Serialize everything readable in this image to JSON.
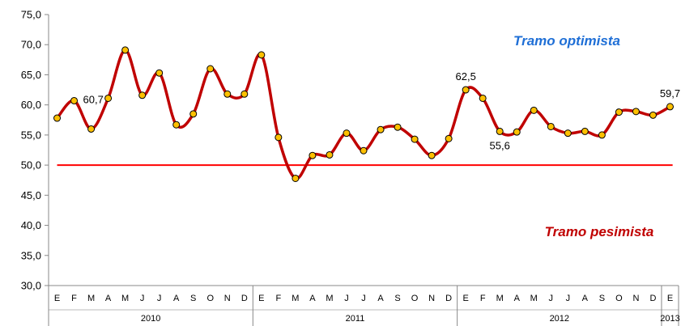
{
  "chart_data": {
    "type": "line",
    "ylim": [
      30,
      75
    ],
    "yticks": [
      "30,0",
      "35,0",
      "40,0",
      "45,0",
      "50,0",
      "55,0",
      "60,0",
      "65,0",
      "70,0",
      "75,0"
    ],
    "months": [
      "E",
      "F",
      "M",
      "A",
      "M",
      "J",
      "J",
      "A",
      "S",
      "O",
      "N",
      "D",
      "E",
      "F",
      "M",
      "A",
      "M",
      "J",
      "J",
      "A",
      "S",
      "O",
      "N",
      "D",
      "E",
      "F",
      "M",
      "A",
      "M",
      "J",
      "J",
      "A",
      "S",
      "O",
      "N",
      "D",
      "E"
    ],
    "years": [
      {
        "label": "2010",
        "count": 12
      },
      {
        "label": "2011",
        "count": 12
      },
      {
        "label": "2012",
        "count": 12
      },
      {
        "label": "2013",
        "count": 1
      }
    ],
    "series": [
      {
        "color": "#c00000",
        "marker_color": "#ffc000",
        "values": [
          57.8,
          60.7,
          56.0,
          61.1,
          69.1,
          61.6,
          65.3,
          56.7,
          58.5,
          66.0,
          61.8,
          61.8,
          68.3,
          54.6,
          47.8,
          51.6,
          51.7,
          55.3,
          52.4,
          55.9,
          56.3,
          54.3,
          51.6,
          54.4,
          62.5,
          61.1,
          55.6,
          55.5,
          59.1,
          56.4,
          55.3,
          55.6,
          55.0,
          58.8,
          58.9,
          58.3,
          59.7
        ]
      }
    ],
    "data_labels": [
      {
        "index": 1,
        "text": "60,7"
      },
      {
        "index": 24,
        "text": "62,5"
      },
      {
        "index": 26,
        "text": "55,6"
      },
      {
        "index": 36,
        "text": "59,7"
      }
    ],
    "reference_line": {
      "value": 50,
      "color": "#ff0000"
    },
    "annotations": [
      {
        "text": "Tramo optimista",
        "color": "#1f6fd6"
      },
      {
        "text": "Tramo pesimista",
        "color": "#c00000"
      }
    ]
  }
}
